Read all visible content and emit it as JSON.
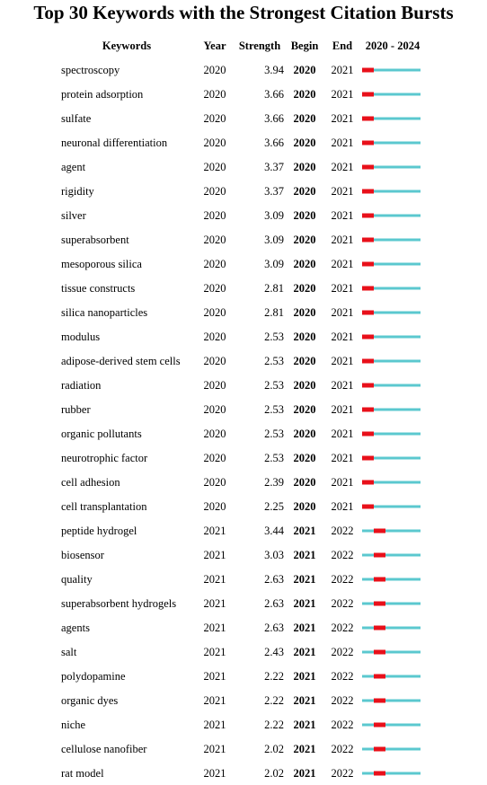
{
  "chart_data": {
    "type": "table",
    "title": "Top 30 Keywords with the Strongest Citation Bursts",
    "columns": [
      "Keywords",
      "Year",
      "Strength",
      "Begin",
      "End",
      "2020 - 2024"
    ],
    "timeline": {
      "start": 2020,
      "end": 2024
    },
    "colors": {
      "burst": "#e8101a",
      "baseline": "#5bc8cf"
    },
    "rows": [
      {
        "keyword": "spectroscopy",
        "year": "2020",
        "strength": "3.94",
        "begin": "2020",
        "end": "2021"
      },
      {
        "keyword": "protein adsorption",
        "year": "2020",
        "strength": "3.66",
        "begin": "2020",
        "end": "2021"
      },
      {
        "keyword": "sulfate",
        "year": "2020",
        "strength": "3.66",
        "begin": "2020",
        "end": "2021"
      },
      {
        "keyword": "neuronal differentiation",
        "year": "2020",
        "strength": "3.66",
        "begin": "2020",
        "end": "2021"
      },
      {
        "keyword": "agent",
        "year": "2020",
        "strength": "3.37",
        "begin": "2020",
        "end": "2021"
      },
      {
        "keyword": "rigidity",
        "year": "2020",
        "strength": "3.37",
        "begin": "2020",
        "end": "2021"
      },
      {
        "keyword": "silver",
        "year": "2020",
        "strength": "3.09",
        "begin": "2020",
        "end": "2021"
      },
      {
        "keyword": "superabsorbent",
        "year": "2020",
        "strength": "3.09",
        "begin": "2020",
        "end": "2021"
      },
      {
        "keyword": "mesoporous silica",
        "year": "2020",
        "strength": "3.09",
        "begin": "2020",
        "end": "2021"
      },
      {
        "keyword": "tissue constructs",
        "year": "2020",
        "strength": "2.81",
        "begin": "2020",
        "end": "2021"
      },
      {
        "keyword": "silica nanoparticles",
        "year": "2020",
        "strength": "2.81",
        "begin": "2020",
        "end": "2021"
      },
      {
        "keyword": "modulus",
        "year": "2020",
        "strength": "2.53",
        "begin": "2020",
        "end": "2021"
      },
      {
        "keyword": "adipose-derived stem cells",
        "year": "2020",
        "strength": "2.53",
        "begin": "2020",
        "end": "2021"
      },
      {
        "keyword": "radiation",
        "year": "2020",
        "strength": "2.53",
        "begin": "2020",
        "end": "2021"
      },
      {
        "keyword": "rubber",
        "year": "2020",
        "strength": "2.53",
        "begin": "2020",
        "end": "2021"
      },
      {
        "keyword": "organic pollutants",
        "year": "2020",
        "strength": "2.53",
        "begin": "2020",
        "end": "2021"
      },
      {
        "keyword": "neurotrophic factor",
        "year": "2020",
        "strength": "2.53",
        "begin": "2020",
        "end": "2021"
      },
      {
        "keyword": "cell adhesion",
        "year": "2020",
        "strength": "2.39",
        "begin": "2020",
        "end": "2021"
      },
      {
        "keyword": "cell transplantation",
        "year": "2020",
        "strength": "2.25",
        "begin": "2020",
        "end": "2021"
      },
      {
        "keyword": "peptide hydrogel",
        "year": "2021",
        "strength": "3.44",
        "begin": "2021",
        "end": "2022"
      },
      {
        "keyword": "biosensor",
        "year": "2021",
        "strength": "3.03",
        "begin": "2021",
        "end": "2022"
      },
      {
        "keyword": "quality",
        "year": "2021",
        "strength": "2.63",
        "begin": "2021",
        "end": "2022"
      },
      {
        "keyword": "superabsorbent hydrogels",
        "year": "2021",
        "strength": "2.63",
        "begin": "2021",
        "end": "2022"
      },
      {
        "keyword": "agents",
        "year": "2021",
        "strength": "2.63",
        "begin": "2021",
        "end": "2022"
      },
      {
        "keyword": "salt",
        "year": "2021",
        "strength": "2.43",
        "begin": "2021",
        "end": "2022"
      },
      {
        "keyword": "polydopamine",
        "year": "2021",
        "strength": "2.22",
        "begin": "2021",
        "end": "2022"
      },
      {
        "keyword": "organic dyes",
        "year": "2021",
        "strength": "2.22",
        "begin": "2021",
        "end": "2022"
      },
      {
        "keyword": "niche",
        "year": "2021",
        "strength": "2.22",
        "begin": "2021",
        "end": "2022"
      },
      {
        "keyword": "cellulose nanofiber",
        "year": "2021",
        "strength": "2.02",
        "begin": "2021",
        "end": "2022"
      },
      {
        "keyword": "rat model",
        "year": "2021",
        "strength": "2.02",
        "begin": "2021",
        "end": "2022"
      }
    ]
  }
}
